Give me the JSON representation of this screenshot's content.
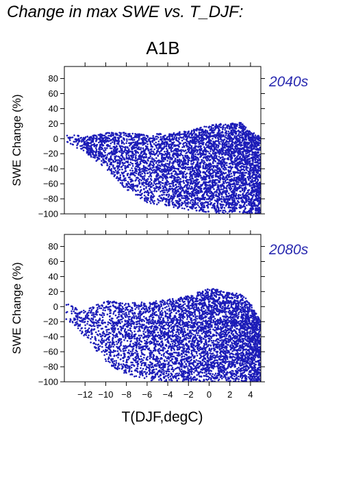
{
  "header": {
    "title": "Change in max SWE vs. T_DJF:",
    "scenario": "A1B"
  },
  "colors": {
    "points": "#1c1cb8",
    "period_label": "#2a2ab0"
  },
  "chart_data": [
    {
      "type": "scatter",
      "period_label": "2040s",
      "xlabel": "T(DJF,degC)",
      "ylabel": "SWE Change (%)",
      "xlim": [
        -14,
        5
      ],
      "ylim": [
        -100,
        96
      ],
      "xticks": [
        -12,
        -10,
        -8,
        -6,
        -4,
        -2,
        0,
        2,
        4
      ],
      "yticks": [
        -100,
        -80,
        -60,
        -40,
        -20,
        0,
        20,
        40,
        60,
        80
      ],
      "x_tick_labels_shown": false,
      "envelope": {
        "x": [
          -14,
          -12,
          -10,
          -8,
          -6,
          -4,
          -2,
          0,
          1,
          2,
          3,
          4,
          5
        ],
        "upper": [
          6,
          3,
          8,
          8,
          5,
          8,
          10,
          18,
          20,
          20,
          22,
          10,
          2
        ],
        "lower": [
          -5,
          -18,
          -40,
          -68,
          -85,
          -90,
          -95,
          -98,
          -100,
          -100,
          -100,
          -100,
          -100
        ]
      }
    },
    {
      "type": "scatter",
      "period_label": "2080s",
      "xlabel": "T(DJF,degC)",
      "ylabel": "SWE Change (%)",
      "xlim": [
        -14,
        5
      ],
      "ylim": [
        -100,
        96
      ],
      "xticks": [
        -12,
        -10,
        -8,
        -6,
        -4,
        -2,
        0,
        2,
        4
      ],
      "yticks": [
        -100,
        -80,
        -60,
        -40,
        -20,
        0,
        20,
        40,
        60,
        80
      ],
      "x_tick_labels_shown": true,
      "envelope": {
        "x": [
          -14,
          -12,
          -10,
          -8,
          -6,
          -4,
          -2,
          0,
          1,
          2,
          3,
          4,
          5
        ],
        "upper": [
          5,
          -5,
          8,
          5,
          6,
          10,
          14,
          25,
          22,
          18,
          18,
          5,
          -20
        ],
        "lower": [
          -15,
          -40,
          -75,
          -90,
          -98,
          -100,
          -100,
          -100,
          -100,
          -100,
          -100,
          -100,
          -100
        ]
      }
    }
  ]
}
